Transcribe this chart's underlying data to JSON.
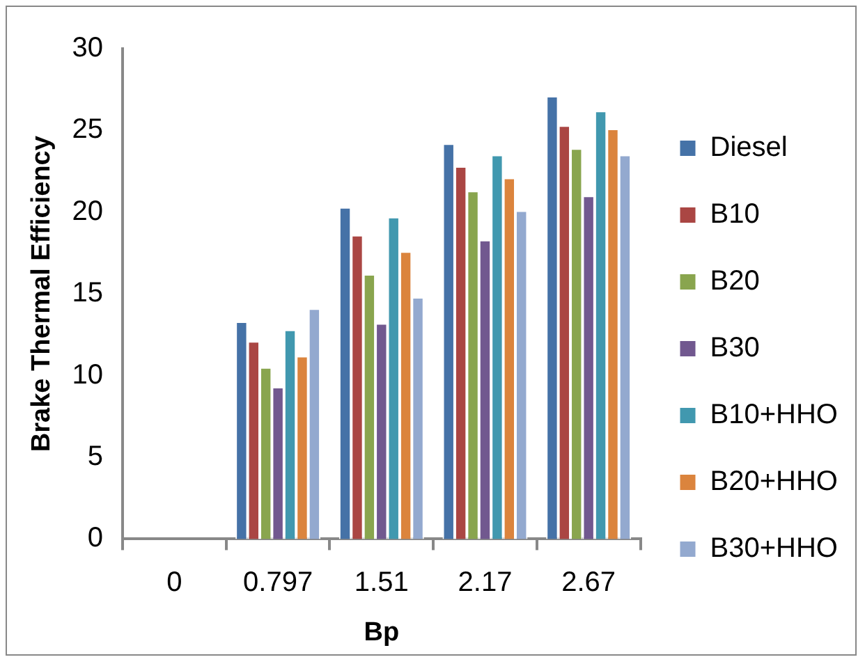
{
  "chart_data": {
    "type": "bar",
    "xlabel": "Bp",
    "ylabel": "Brake Thermal Efficiency",
    "categories": [
      "0",
      "0.797",
      "1.51",
      "2.17",
      "2.67"
    ],
    "series": [
      {
        "name": "Diesel",
        "color": "#4572a7",
        "values": [
          0,
          13.3,
          20.3,
          24.2,
          27.1
        ]
      },
      {
        "name": "B10",
        "color": "#aa4643",
        "values": [
          0,
          12.1,
          18.6,
          22.8,
          25.3
        ]
      },
      {
        "name": "B20",
        "color": "#89a54e",
        "values": [
          0,
          10.5,
          16.2,
          21.3,
          23.9
        ]
      },
      {
        "name": "B30",
        "color": "#71588f",
        "values": [
          0,
          9.3,
          13.2,
          18.3,
          21.0
        ]
      },
      {
        "name": "B10+HHO",
        "color": "#4198af",
        "values": [
          0,
          12.8,
          19.7,
          23.5,
          26.2
        ]
      },
      {
        "name": "B20+HHO",
        "color": "#db843d",
        "values": [
          0,
          11.2,
          17.6,
          22.1,
          25.1
        ]
      },
      {
        "name": "B30+HHO",
        "color": "#93a9cf",
        "values": [
          0,
          14.1,
          14.8,
          20.1,
          23.5
        ]
      }
    ],
    "ylim": [
      0,
      30
    ],
    "yticks": [
      0,
      5,
      10,
      15,
      20,
      25,
      30
    ],
    "grid": false,
    "legend": "right"
  }
}
